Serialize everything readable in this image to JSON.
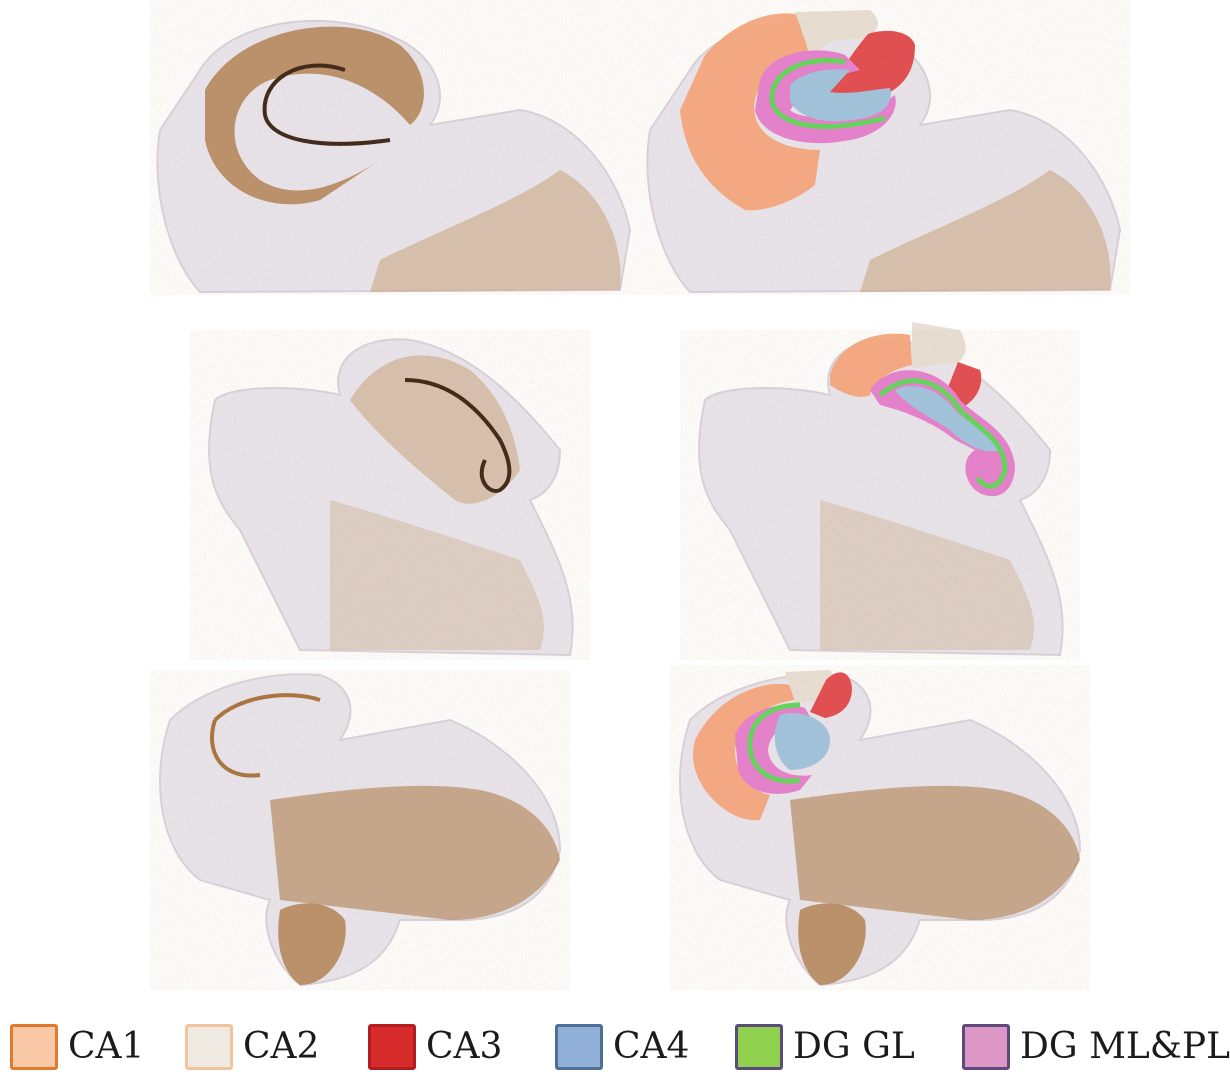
{
  "figure": {
    "colors": {
      "tissue": "#e9e6ef",
      "tissue_edge": "#d9d3de",
      "stain": "#a8733d",
      "stain_light": "#c9a27a",
      "stain_dark": "#3a2414"
    }
  },
  "legend": {
    "items": [
      {
        "label": "CA1",
        "fill": "#f9c9a7",
        "border": "#e07a2e"
      },
      {
        "label": "CA2",
        "fill": "#eeeae2",
        "border": "#f3c39b"
      },
      {
        "label": "CA3",
        "fill": "#d82c2c",
        "border": "#b01f1f"
      },
      {
        "label": "CA4",
        "fill": "#92b1d8",
        "border": "#4e6f96"
      },
      {
        "label": "DG GL",
        "fill": "#8fd14f",
        "border": "#5b4a7a"
      },
      {
        "label": "DG ML&PL",
        "fill": "#dc96c6",
        "border": "#5b4a7a"
      }
    ]
  }
}
